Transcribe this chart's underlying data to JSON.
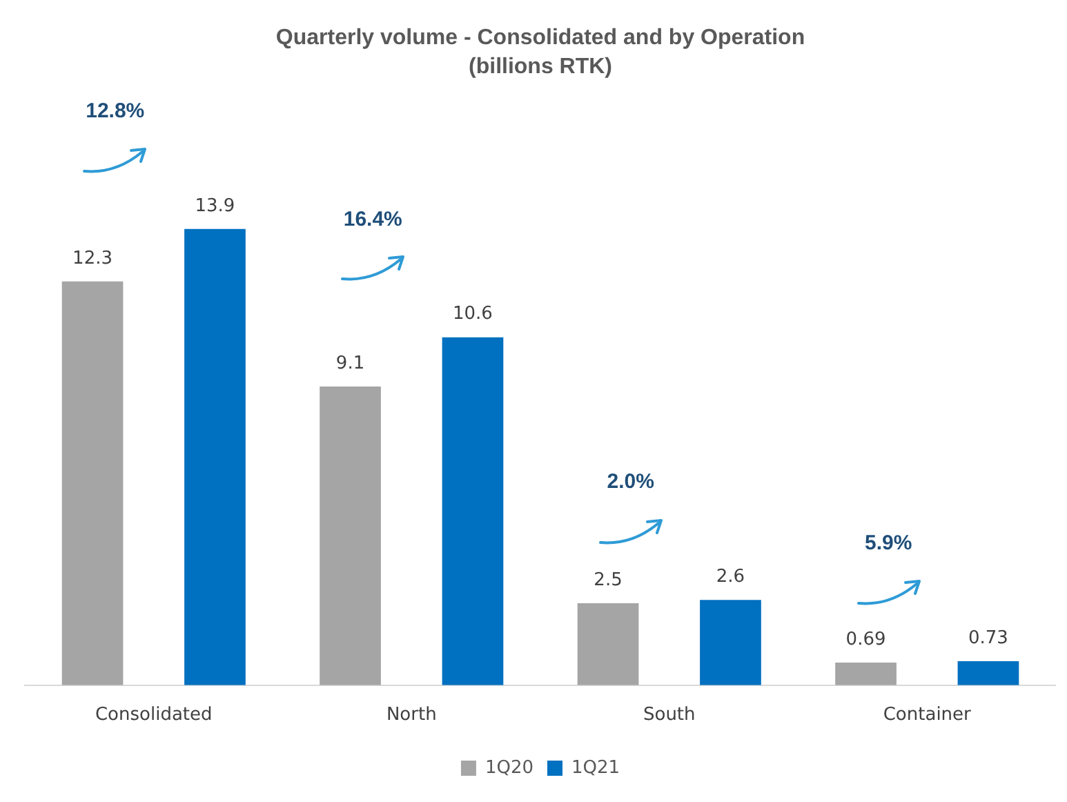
{
  "chart_data": {
    "type": "bar",
    "title": "Quarterly volume - Consolidated and by Operation",
    "subtitle": "(billions RTK)",
    "categories": [
      "Consolidated",
      "North",
      "South",
      "Container"
    ],
    "series": [
      {
        "name": "1Q20",
        "color": "#a5a5a5",
        "values": [
          12.3,
          9.1,
          2.5,
          0.69
        ]
      },
      {
        "name": "1Q21",
        "color": "#0070c0",
        "values": [
          13.9,
          10.6,
          2.6,
          0.73
        ]
      }
    ],
    "data_labels": true,
    "grid": false,
    "legend": "bottom",
    "annotations": [
      "12.8%",
      "16.4%",
      "2.0%",
      "5.9%"
    ]
  }
}
